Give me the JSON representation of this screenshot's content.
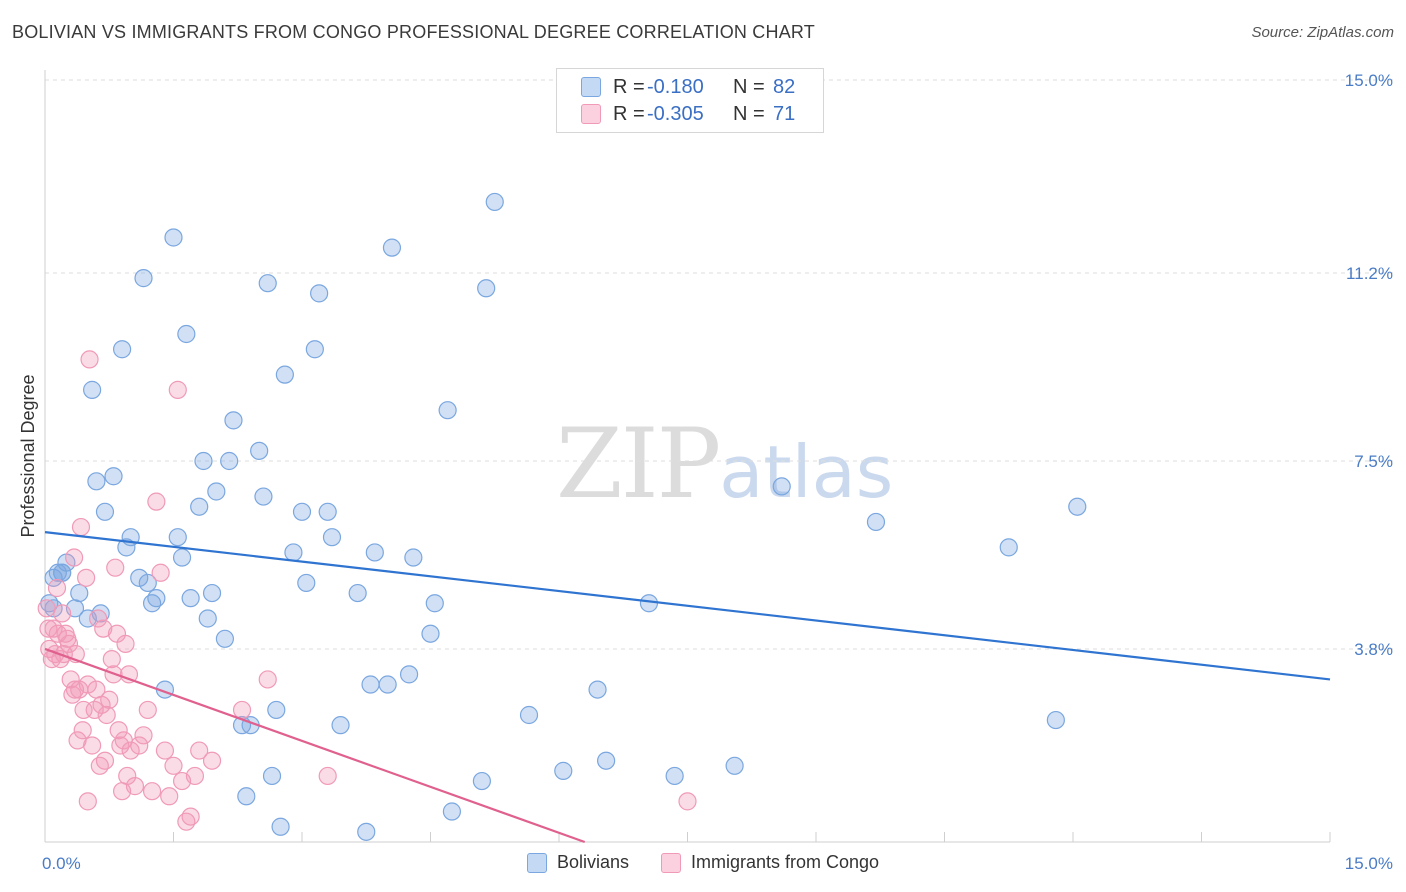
{
  "title": "BOLIVIAN VS IMMIGRANTS FROM CONGO PROFESSIONAL DEGREE CORRELATION CHART",
  "source": "Source: ZipAtlas.com",
  "watermark": {
    "zip": "ZIP",
    "atlas": "atlas"
  },
  "legend_top": {
    "rows": [
      {
        "r_label": "R =",
        "r_value": "-0.180",
        "n_label": "N =",
        "n_value": "82"
      },
      {
        "r_label": "R =",
        "r_value": "-0.305",
        "n_label": "N =",
        "n_value": "71"
      }
    ]
  },
  "chart_data": {
    "type": "scatter",
    "title": "BOLIVIAN VS IMMIGRANTS FROM CONGO PROFESSIONAL DEGREE CORRELATION CHART",
    "xlabel": "",
    "ylabel": "Professional Degree",
    "xlim": [
      0,
      15
    ],
    "ylim": [
      0,
      15
    ],
    "x_tick_labels": [
      "0.0%",
      "15.0%"
    ],
    "y_ticks": [
      3.8,
      7.5,
      11.2,
      15.0
    ],
    "y_tick_labels": [
      "3.8%",
      "7.5%",
      "11.2%",
      "15.0%"
    ],
    "grid": true,
    "colors": {
      "bolivians": "#7aa7e0",
      "congo": "#f09ab8",
      "bolivians_line": "#2f74d0",
      "congo_line": "#e0608e",
      "tick_text": "#4a7cc6"
    },
    "series": [
      {
        "name": "Bolivians",
        "r": -0.18,
        "n": 82,
        "trend": {
          "x0": 0.0,
          "y0": 6.1,
          "x1": 15.0,
          "y1": 3.2
        },
        "points": [
          [
            0.05,
            4.7
          ],
          [
            0.1,
            5.2
          ],
          [
            0.15,
            5.3
          ],
          [
            0.2,
            5.3
          ],
          [
            0.25,
            5.5
          ],
          [
            0.35,
            4.6
          ],
          [
            0.4,
            4.9
          ],
          [
            0.5,
            4.4
          ],
          [
            0.55,
            8.9
          ],
          [
            0.6,
            7.1
          ],
          [
            0.65,
            4.5
          ],
          [
            0.7,
            6.5
          ],
          [
            0.8,
            7.2
          ],
          [
            0.9,
            9.7
          ],
          [
            0.95,
            5.8
          ],
          [
            1.0,
            6.0
          ],
          [
            1.1,
            5.2
          ],
          [
            1.15,
            11.1
          ],
          [
            1.2,
            5.1
          ],
          [
            1.25,
            4.7
          ],
          [
            1.3,
            4.8
          ],
          [
            1.4,
            3.0
          ],
          [
            1.5,
            11.9
          ],
          [
            1.55,
            6.0
          ],
          [
            1.6,
            5.6
          ],
          [
            1.65,
            10.0
          ],
          [
            1.7,
            4.8
          ],
          [
            1.8,
            6.6
          ],
          [
            1.85,
            7.5
          ],
          [
            1.9,
            4.4
          ],
          [
            1.95,
            4.9
          ],
          [
            2.0,
            6.9
          ],
          [
            2.1,
            4.0
          ],
          [
            2.15,
            7.5
          ],
          [
            2.2,
            8.3
          ],
          [
            2.3,
            2.3
          ],
          [
            2.35,
            0.9
          ],
          [
            2.4,
            2.3
          ],
          [
            2.5,
            7.7
          ],
          [
            2.55,
            6.8
          ],
          [
            2.6,
            11.0
          ],
          [
            2.65,
            1.3
          ],
          [
            2.7,
            2.6
          ],
          [
            2.75,
            0.3
          ],
          [
            2.8,
            9.2
          ],
          [
            2.9,
            5.7
          ],
          [
            3.0,
            6.5
          ],
          [
            3.05,
            5.1
          ],
          [
            3.15,
            9.7
          ],
          [
            3.2,
            10.8
          ],
          [
            3.3,
            6.5
          ],
          [
            3.35,
            6.0
          ],
          [
            3.45,
            2.3
          ],
          [
            3.65,
            4.9
          ],
          [
            3.75,
            0.2
          ],
          [
            3.8,
            3.1
          ],
          [
            3.85,
            5.7
          ],
          [
            4.0,
            3.1
          ],
          [
            4.05,
            11.7
          ],
          [
            4.25,
            3.3
          ],
          [
            4.3,
            5.6
          ],
          [
            4.5,
            4.1
          ],
          [
            4.55,
            4.7
          ],
          [
            4.7,
            8.5
          ],
          [
            4.75,
            0.6
          ],
          [
            5.1,
            1.2
          ],
          [
            5.15,
            10.9
          ],
          [
            5.25,
            12.6
          ],
          [
            5.65,
            2.5
          ],
          [
            6.05,
            1.4
          ],
          [
            6.45,
            3.0
          ],
          [
            6.55,
            1.6
          ],
          [
            7.05,
            4.7
          ],
          [
            7.35,
            1.3
          ],
          [
            8.05,
            1.5
          ],
          [
            8.6,
            7.0
          ],
          [
            9.7,
            6.3
          ],
          [
            11.25,
            5.8
          ],
          [
            11.8,
            2.4
          ],
          [
            12.05,
            6.6
          ],
          [
            0.1,
            4.6
          ],
          [
            0.2,
            5.3
          ]
        ]
      },
      {
        "name": "Immigrants from Congo",
        "r": -0.305,
        "n": 71,
        "trend": {
          "x0": 0.0,
          "y0": 3.8,
          "x1": 6.3,
          "y1": 0.0
        },
        "points": [
          [
            0.02,
            4.6
          ],
          [
            0.04,
            4.2
          ],
          [
            0.05,
            3.8
          ],
          [
            0.08,
            3.6
          ],
          [
            0.1,
            4.2
          ],
          [
            0.12,
            3.7
          ],
          [
            0.14,
            5.0
          ],
          [
            0.15,
            4.1
          ],
          [
            0.18,
            3.6
          ],
          [
            0.2,
            4.5
          ],
          [
            0.22,
            3.7
          ],
          [
            0.24,
            4.1
          ],
          [
            0.26,
            4.0
          ],
          [
            0.28,
            3.9
          ],
          [
            0.3,
            3.2
          ],
          [
            0.32,
            2.9
          ],
          [
            0.34,
            5.6
          ],
          [
            0.35,
            3.0
          ],
          [
            0.36,
            3.7
          ],
          [
            0.38,
            2.0
          ],
          [
            0.4,
            3.0
          ],
          [
            0.42,
            6.2
          ],
          [
            0.44,
            2.2
          ],
          [
            0.45,
            2.6
          ],
          [
            0.48,
            5.2
          ],
          [
            0.5,
            3.1
          ],
          [
            0.52,
            9.5
          ],
          [
            0.55,
            1.9
          ],
          [
            0.58,
            2.6
          ],
          [
            0.6,
            3.0
          ],
          [
            0.62,
            4.4
          ],
          [
            0.64,
            1.5
          ],
          [
            0.66,
            2.7
          ],
          [
            0.68,
            4.2
          ],
          [
            0.7,
            1.6
          ],
          [
            0.72,
            2.5
          ],
          [
            0.75,
            2.8
          ],
          [
            0.78,
            3.6
          ],
          [
            0.8,
            3.3
          ],
          [
            0.82,
            5.4
          ],
          [
            0.84,
            4.1
          ],
          [
            0.86,
            2.2
          ],
          [
            0.88,
            1.9
          ],
          [
            0.9,
            1.0
          ],
          [
            0.92,
            2.0
          ],
          [
            0.94,
            3.9
          ],
          [
            0.96,
            1.3
          ],
          [
            0.98,
            3.3
          ],
          [
            1.0,
            1.8
          ],
          [
            1.05,
            1.1
          ],
          [
            1.1,
            1.9
          ],
          [
            1.15,
            2.1
          ],
          [
            1.2,
            2.6
          ],
          [
            1.25,
            1.0
          ],
          [
            1.3,
            6.7
          ],
          [
            1.35,
            5.3
          ],
          [
            1.4,
            1.8
          ],
          [
            1.45,
            0.9
          ],
          [
            1.5,
            1.5
          ],
          [
            1.55,
            8.9
          ],
          [
            1.6,
            1.2
          ],
          [
            1.65,
            0.4
          ],
          [
            1.7,
            0.5
          ],
          [
            1.75,
            1.3
          ],
          [
            1.8,
            1.8
          ],
          [
            2.3,
            2.6
          ],
          [
            2.6,
            3.2
          ],
          [
            3.3,
            1.3
          ],
          [
            7.5,
            0.8
          ],
          [
            0.5,
            0.8
          ],
          [
            1.95,
            1.6
          ]
        ]
      }
    ]
  },
  "legend_bottom": [
    {
      "label": "Bolivians"
    },
    {
      "label": "Immigrants from Congo"
    }
  ]
}
